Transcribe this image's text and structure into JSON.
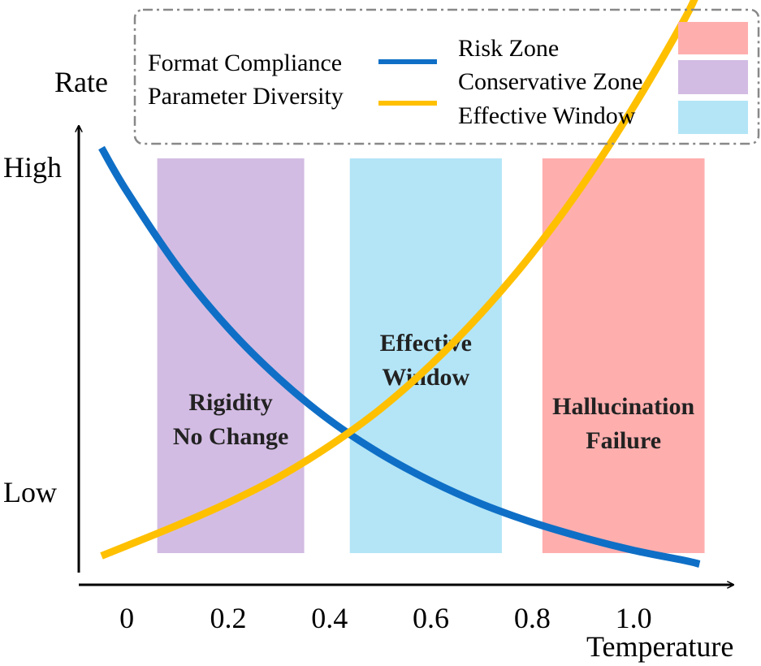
{
  "chart_data": {
    "type": "line",
    "xlabel": "Temperature",
    "ylabel": "Rate",
    "x_ticks": [
      "0",
      "0.2",
      "0.4",
      "0.6",
      "0.8",
      "1.0"
    ],
    "y_ticks": [
      "High",
      "Low"
    ],
    "xlim": [
      -0.09,
      1.16
    ],
    "series": [
      {
        "name": "Format Compliance",
        "color": "#0F6FC6",
        "x": [
          -0.05,
          0.0,
          0.1,
          0.2,
          0.3,
          0.4,
          0.5,
          0.6,
          0.7,
          0.8,
          0.9,
          1.0,
          1.1,
          1.13
        ],
        "y": [
          1.0,
          0.905,
          0.741,
          0.607,
          0.497,
          0.406,
          0.333,
          0.273,
          0.223,
          0.183,
          0.15,
          0.122,
          0.1,
          0.092
        ]
      },
      {
        "name": "Parameter Diversity",
        "color": "#FFC000",
        "x": [
          -0.05,
          0.0,
          0.1,
          0.2,
          0.3,
          0.4,
          0.5,
          0.6,
          0.7,
          0.8,
          0.9,
          1.0,
          1.1,
          1.13
        ],
        "y": [
          0.11,
          0.132,
          0.177,
          0.226,
          0.282,
          0.35,
          0.43,
          0.527,
          0.64,
          0.77,
          0.92,
          1.09,
          1.28,
          1.35
        ]
      }
    ],
    "zones": [
      {
        "name": "Conservative Zone",
        "label_line1": "Rigidity",
        "label_line2": "No Change",
        "x_start": 0.06,
        "x_end": 0.35,
        "color": "#D3BCE3"
      },
      {
        "name": "Effective Window",
        "label_line1": "Effective",
        "label_line2": "Window",
        "x_start": 0.44,
        "x_end": 0.74,
        "color": "#B3E5F7"
      },
      {
        "name": "Risk Zone",
        "label_line1": "Hallucination",
        "label_line2": "Failure",
        "x_start": 0.82,
        "x_end": 1.14,
        "color": "#FFAEAE"
      }
    ],
    "legend": {
      "position": "top",
      "lines": [
        {
          "label": "Format Compliance",
          "color": "#0F6FC6"
        },
        {
          "label": "Parameter Diversity",
          "color": "#FFC000"
        }
      ],
      "zones": [
        {
          "label": "Risk Zone",
          "color": "#FFAEAE"
        },
        {
          "label": "Conservative Zone",
          "color": "#D3BCE3"
        },
        {
          "label": "Effective Window",
          "color": "#B3E5F7"
        }
      ]
    }
  }
}
